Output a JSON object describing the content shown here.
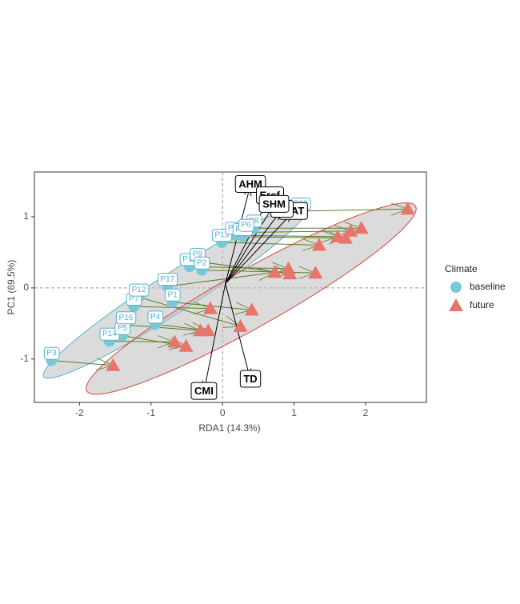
{
  "chart_data": {
    "type": "scatter",
    "x_label": "RDA1 (14.3%)",
    "y_label": "PC1 (69.5%)",
    "xlim": [
      -2.63,
      2.85
    ],
    "ylim": [
      -1.61,
      1.63
    ],
    "xticks": [
      -2,
      -1,
      0,
      1,
      2
    ],
    "yticks": [
      -1,
      0,
      1
    ],
    "legend_title": "Climate",
    "legend": "right",
    "series": [
      {
        "name": "baseline",
        "color": "#78c8d8",
        "marker": "circle",
        "labels": [
          "P3",
          "P14",
          "P5",
          "P16",
          "P4",
          "P7",
          "P12",
          "P1",
          "P17",
          "P18",
          "P9",
          "P2",
          "P13",
          "P11",
          "P10",
          "P8",
          "P6",
          "P19"
        ],
        "x": [
          -2.39,
          -1.58,
          -1.4,
          -1.35,
          -0.94,
          -1.24,
          -1.17,
          -0.7,
          -0.77,
          -0.46,
          -0.35,
          -0.29,
          -0.01,
          0.17,
          0.28,
          0.44,
          0.33,
          1.09
        ],
        "y": [
          -1.02,
          -0.75,
          -0.67,
          -0.52,
          -0.51,
          -0.26,
          -0.13,
          -0.2,
          0.02,
          0.3,
          0.37,
          0.25,
          0.64,
          0.74,
          0.72,
          0.84,
          0.78,
          1.08
        ],
        "ellipse": {
          "center": [
            -0.65,
            -0.05
          ],
          "a": [
            1.85,
            1.2
          ],
          "b": [
            0.15,
            -0.23
          ]
        }
      },
      {
        "name": "future",
        "color": "#e8756b",
        "marker": "triangle",
        "x": [
          -1.53,
          -0.67,
          -0.51,
          -0.31,
          -0.2,
          -0.17,
          0.25,
          0.41,
          0.73,
          0.92,
          0.94,
          1.3,
          1.35,
          1.61,
          1.72,
          1.94,
          1.79,
          2.59
        ],
        "y": [
          -1.09,
          -0.76,
          -0.82,
          -0.6,
          -0.6,
          -0.29,
          -0.54,
          -0.31,
          0.22,
          0.27,
          0.2,
          0.21,
          0.6,
          0.72,
          0.7,
          0.84,
          0.8,
          1.11
        ],
        "ellipse": {
          "center": [
            0.4,
            -0.15
          ],
          "a": [
            2.3,
            1.3
          ],
          "b": [
            0.2,
            -0.35
          ]
        }
      }
    ],
    "arrow_origin": [
      0.04,
      0.06
    ],
    "vectors": [
      {
        "name": "AHM",
        "x": 0.39,
        "y": 1.45
      },
      {
        "name": "Eref",
        "x": 0.66,
        "y": 1.29
      },
      {
        "name": "MAT",
        "x": 0.99,
        "y": 1.07
      },
      {
        "name": "MP",
        "x": 0.83,
        "y": 1.1
      },
      {
        "name": "SHM",
        "x": 0.72,
        "y": 1.17
      },
      {
        "name": "CMI",
        "x": -0.26,
        "y": -1.46
      },
      {
        "name": "TD",
        "x": 0.39,
        "y": -1.29
      }
    ]
  }
}
